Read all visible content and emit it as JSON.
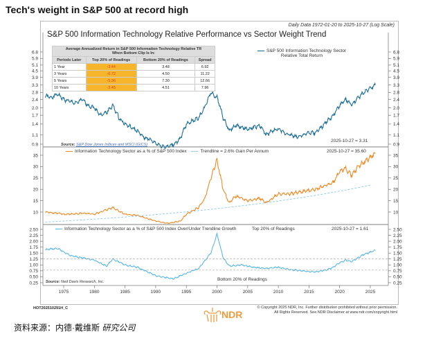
{
  "headline": "Tech's weight in S&P 500 at record high",
  "chart_subtitle": "Daily Data 1972-01-20 to 2025-10-27 (Log Scale)",
  "chart_title": "S&P 500 Information Technology Relative Performance vs Sector Weight Trend",
  "table": {
    "title_line1": "Average Annualized Return in S&P 500 Information Technology Relative TR",
    "title_line2": "When Bottom Clip Is In:",
    "headers": [
      "Periods Later",
      "Top 20% of Readings",
      "Bottom 20% of Readings",
      "Spread"
    ],
    "rows": [
      [
        "1 Year",
        "-3.44",
        "3.48",
        "6.92"
      ],
      [
        "3 Years",
        "-6.72",
        "4.50",
        "11.22"
      ],
      [
        "5 Years",
        "-5.36",
        "7.30",
        "12.66"
      ],
      [
        "10 Years",
        "-3.45",
        "4.51",
        "7.96"
      ]
    ]
  },
  "colors": {
    "top": "#1a6e96",
    "mid": "#f08a24",
    "trend": "#8ec9e6",
    "bot": "#5bb8e8",
    "highlight": "#f7b52c"
  },
  "panels": {
    "top": {
      "legend_line1": "S&P 500 Information Technology Sector",
      "legend_line2": "Relative Total Return",
      "last_value": "2025-10-27 = 3.31",
      "source_label": "Source:",
      "source_text": "S&P Dow Jones Indices and MSCI (GICS)"
    },
    "mid": {
      "legend_main": "Information Technology Sector as a % of S&P 500 Index",
      "legend_trend": "Trendline = 2.6% Gain Per Annum",
      "last_value": "2025-10-27 = 35.60"
    },
    "bot": {
      "legend_main": "Information Technology Sector as a % of S&P 500 Index Over/Under Trendline Growth",
      "top_label": "Top 20% of Readings",
      "bottom_label": "Bottom 20% of Readings",
      "last_value": "2025-10-27 = 1.61",
      "source_label": "Source:",
      "source_text": "Ned Davis Research, Inc."
    }
  },
  "chart_data": [
    {
      "type": "line",
      "name": "S&P 500 Information Technology Sector Relative Total Return",
      "scale": "log",
      "yticks": [
        "6.8",
        "5.9",
        "5.1",
        "4.5",
        "3.9",
        "3.3",
        "2.8",
        "2.4",
        "2.0",
        "1.7",
        "1.4",
        "1.1",
        "0.9"
      ],
      "ylim": [
        0.9,
        6.8
      ],
      "x": [
        1972,
        1973,
        1974,
        1975,
        1976,
        1977,
        1978,
        1979,
        1980,
        1981,
        1982,
        1983,
        1984,
        1985,
        1986,
        1987,
        1988,
        1989,
        1990,
        1991,
        1992,
        1993,
        1994,
        1995,
        1996,
        1997,
        1998,
        1999,
        2000,
        2001,
        2002,
        2003,
        2004,
        2005,
        2006,
        2007,
        2008,
        2009,
        2010,
        2011,
        2012,
        2013,
        2014,
        2015,
        2016,
        2017,
        2018,
        2019,
        2020,
        2021,
        2022,
        2023,
        2024,
        2025.82
      ],
      "values": [
        2.6,
        2.5,
        2.7,
        2.4,
        2.3,
        2.2,
        2.4,
        2.1,
        2.0,
        1.7,
        1.8,
        2.1,
        1.6,
        1.4,
        1.3,
        1.2,
        1.05,
        1.0,
        0.92,
        0.86,
        0.85,
        0.9,
        1.0,
        1.4,
        1.5,
        1.6,
        2.0,
        2.8,
        2.5,
        1.6,
        1.2,
        1.35,
        1.3,
        1.25,
        1.3,
        1.35,
        1.1,
        1.2,
        1.25,
        1.15,
        1.1,
        1.05,
        1.1,
        1.15,
        1.15,
        1.3,
        1.5,
        1.7,
        2.1,
        2.4,
        2.1,
        2.5,
        2.8,
        3.31
      ]
    },
    {
      "type": "line",
      "name": "Information Technology Sector as a % of S&P 500 Index",
      "yticks": [
        "35",
        "30",
        "25",
        "20",
        "15",
        "10"
      ],
      "ylim": [
        5,
        36
      ],
      "x": [
        1972,
        1974,
        1975,
        1977,
        1978,
        1980,
        1983,
        1985,
        1987,
        1990,
        1992,
        1994,
        1995,
        1997,
        1998,
        1999,
        2000,
        2001,
        2002,
        2003,
        2005,
        2007,
        2008,
        2010,
        2012,
        2014,
        2016,
        2018,
        2019,
        2020,
        2021,
        2022,
        2023,
        2024,
        2025.82
      ],
      "values": [
        10,
        9.5,
        9,
        9.2,
        9.5,
        9,
        12,
        9,
        8.5,
        6,
        5,
        6,
        9,
        12,
        16,
        25,
        33,
        20,
        14,
        17,
        15,
        16,
        14,
        18,
        18,
        19,
        20,
        22,
        23,
        28,
        29,
        26,
        30,
        32,
        35.6
      ],
      "trendline": {
        "name": "Trendline = 2.6% Gain Per Annum",
        "start_year": 1972,
        "start_value": 5.6,
        "annual_growth_pct": 2.6
      }
    },
    {
      "type": "line",
      "name": "Information Technology Sector as a % of S&P 500 Index Over/Under Trendline Growth",
      "yticks": [
        "2.50",
        "2.25",
        "2.00",
        "1.75",
        "1.50",
        "1.25",
        "1.00",
        "0.75",
        "0.50",
        "0.25"
      ],
      "ylim": [
        0.25,
        2.5
      ],
      "reference_lines": {
        "top_20pct": 1.25,
        "bottom_20pct": 0.78
      },
      "x": [
        1972,
        1974,
        1976,
        1978,
        1980,
        1982,
        1983,
        1985,
        1987,
        1990,
        1992,
        1993,
        1995,
        1997,
        1999,
        2000,
        2001,
        2002,
        2004,
        2006,
        2008,
        2010,
        2012,
        2014,
        2016,
        2018,
        2019,
        2020,
        2021,
        2022,
        2023,
        2024,
        2025.82
      ],
      "values": [
        1.65,
        1.7,
        1.4,
        1.3,
        1.2,
        0.95,
        1.25,
        1.0,
        0.9,
        0.55,
        0.45,
        0.42,
        0.65,
        0.85,
        1.5,
        2.3,
        1.3,
        0.95,
        1.0,
        0.9,
        0.85,
        0.9,
        0.8,
        0.75,
        0.7,
        0.8,
        0.9,
        1.1,
        1.2,
        1.15,
        1.3,
        1.45,
        1.61
      ],
      "xticks": [
        "1975",
        "1980",
        "1985",
        "1990",
        "1995",
        "2000",
        "2005",
        "2010",
        "2015",
        "2020",
        "2025"
      ]
    }
  ],
  "footer": {
    "code": "HOT202510291H_C",
    "logo_text": "NDR",
    "copyright_line1": "© Copyright 2025 NDR, Inc. Further distribution prohibited without prior permission.",
    "copyright_line2": "All Rights Reserved. See NDR Disclaimer at www.ndr.com/copyright.html"
  },
  "source_cn_label": "资料来源：内德·戴维斯",
  "source_cn_italic": "研究公司"
}
